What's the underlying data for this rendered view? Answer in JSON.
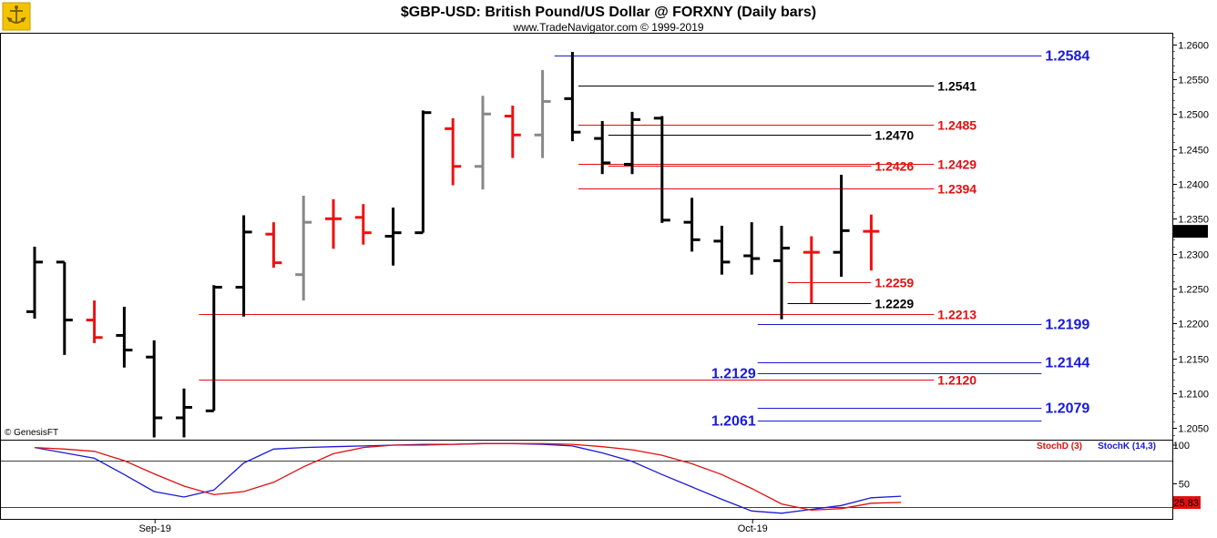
{
  "colors": {
    "up": "#000000",
    "down": "#ee1111",
    "neutral": "#888888",
    "support": "#1a1ad6",
    "resistance": "#e01010",
    "black_level": "#000000",
    "stoch_d": "#e01010",
    "stoch_k": "#1a1ad6",
    "current_price_bg": "#000000",
    "stoch_value_bg": "#e01010"
  },
  "chart_data": [
    {
      "type": "ohlc",
      "title": "$GBP-USD:  British Pound/US Dollar @ FORXNY  (Daily bars)",
      "subtitle": "www.TradeNavigator.com © 1999-2019",
      "watermark": "© GenesisFT",
      "y_axis": {
        "range": [
          1.2035,
          1.2615
        ],
        "ticks": [
          "1.2050",
          "1.2100",
          "1.2150",
          "1.2200",
          "1.2250",
          "1.2300",
          "1.2350",
          "1.2400",
          "1.2450",
          "1.2500",
          "1.2550",
          "1.2600"
        ],
        "current_price": "1.2332",
        "position": "right"
      },
      "x_axis": {
        "labels": [
          {
            "text": "Sep-19",
            "bar": 4
          },
          {
            "text": "Oct-19",
            "bar": 24
          }
        ]
      },
      "bars": [
        {
          "o": 1.2217,
          "h": 1.231,
          "l": 1.2207,
          "c": 1.2288,
          "color": "up"
        },
        {
          "o": 1.2288,
          "h": 1.2288,
          "l": 1.2155,
          "c": 1.2205,
          "color": "up"
        },
        {
          "o": 1.2205,
          "h": 1.2233,
          "l": 1.2172,
          "c": 1.218,
          "color": "down"
        },
        {
          "o": 1.2183,
          "h": 1.2224,
          "l": 1.2137,
          "c": 1.2162,
          "color": "up"
        },
        {
          "o": 1.2152,
          "h": 1.2176,
          "l": 1.2037,
          "c": 1.2065,
          "color": "up"
        },
        {
          "o": 1.2065,
          "h": 1.2107,
          "l": 1.2037,
          "c": 1.208,
          "color": "up"
        },
        {
          "o": 1.2075,
          "h": 1.2255,
          "l": 1.2075,
          "c": 1.2252,
          "color": "up"
        },
        {
          "o": 1.2252,
          "h": 1.2355,
          "l": 1.221,
          "c": 1.2331,
          "color": "up"
        },
        {
          "o": 1.2328,
          "h": 1.2345,
          "l": 1.228,
          "c": 1.2287,
          "color": "down"
        },
        {
          "o": 1.227,
          "h": 1.2383,
          "l": 1.2233,
          "c": 1.2345,
          "color": "neutral"
        },
        {
          "o": 1.235,
          "h": 1.2378,
          "l": 1.2307,
          "c": 1.235,
          "color": "down"
        },
        {
          "o": 1.2352,
          "h": 1.2371,
          "l": 1.2313,
          "c": 1.233,
          "color": "down"
        },
        {
          "o": 1.2325,
          "h": 1.2366,
          "l": 1.2283,
          "c": 1.233,
          "color": "up"
        },
        {
          "o": 1.233,
          "h": 1.2505,
          "l": 1.233,
          "c": 1.2502,
          "color": "up"
        },
        {
          "o": 1.2479,
          "h": 1.2494,
          "l": 1.2398,
          "c": 1.2425,
          "color": "down"
        },
        {
          "o": 1.2425,
          "h": 1.2526,
          "l": 1.2392,
          "c": 1.25,
          "color": "neutral"
        },
        {
          "o": 1.2497,
          "h": 1.2512,
          "l": 1.2437,
          "c": 1.247,
          "color": "down"
        },
        {
          "o": 1.247,
          "h": 1.2563,
          "l": 1.2437,
          "c": 1.2518,
          "color": "neutral"
        },
        {
          "o": 1.2522,
          "h": 1.2589,
          "l": 1.2461,
          "c": 1.2474,
          "color": "up"
        },
        {
          "o": 1.2465,
          "h": 1.249,
          "l": 1.2414,
          "c": 1.243,
          "color": "up"
        },
        {
          "o": 1.2428,
          "h": 1.2503,
          "l": 1.2414,
          "c": 1.2492,
          "color": "up"
        },
        {
          "o": 1.2494,
          "h": 1.2497,
          "l": 1.2344,
          "c": 1.2348,
          "color": "up"
        },
        {
          "o": 1.2345,
          "h": 1.238,
          "l": 1.2303,
          "c": 1.232,
          "color": "up"
        },
        {
          "o": 1.2318,
          "h": 1.234,
          "l": 1.227,
          "c": 1.2288,
          "color": "up"
        },
        {
          "o": 1.2297,
          "h": 1.2345,
          "l": 1.227,
          "c": 1.2293,
          "color": "up"
        },
        {
          "o": 1.229,
          "h": 1.234,
          "l": 1.2206,
          "c": 1.2308,
          "color": "up"
        },
        {
          "o": 1.2302,
          "h": 1.2325,
          "l": 1.2229,
          "c": 1.2302,
          "color": "down"
        },
        {
          "o": 1.2302,
          "h": 1.2413,
          "l": 1.2267,
          "c": 1.2333,
          "color": "up"
        },
        {
          "o": 1.2332,
          "h": 1.2356,
          "l": 1.2276,
          "c": 1.2332,
          "color": "down"
        }
      ],
      "levels": [
        {
          "value": 1.2584,
          "label": "1.2584",
          "color": "support",
          "from_bar": 17.4,
          "to_bar": 33.7,
          "label_side": "right",
          "big": true
        },
        {
          "value": 1.2541,
          "label": "1.2541",
          "color": "black_level",
          "from_bar": 18.2,
          "to_bar": 30.1,
          "label_side": "right",
          "big": false
        },
        {
          "value": 1.2485,
          "label": "1.2485",
          "color": "resistance",
          "from_bar": 18.2,
          "to_bar": 30.1,
          "label_side": "right",
          "big": false
        },
        {
          "value": 1.247,
          "label": "1.2470",
          "color": "black_level",
          "from_bar": 19.2,
          "to_bar": 28.0,
          "label_side": "right",
          "big": false
        },
        {
          "value": 1.2429,
          "label": "1.2429",
          "color": "resistance",
          "from_bar": 18.2,
          "to_bar": 30.1,
          "label_side": "right",
          "big": false
        },
        {
          "value": 1.2426,
          "label": "1.2426",
          "color": "resistance",
          "from_bar": 19.2,
          "to_bar": 28.0,
          "label_side": "right",
          "big": false
        },
        {
          "value": 1.2394,
          "label": "1.2394",
          "color": "resistance",
          "from_bar": 18.2,
          "to_bar": 30.1,
          "label_side": "right",
          "big": false
        },
        {
          "value": 1.2259,
          "label": "1.2259",
          "color": "resistance",
          "from_bar": 25.2,
          "to_bar": 28.0,
          "label_side": "right",
          "big": false
        },
        {
          "value": 1.2229,
          "label": "1.2229",
          "color": "black_level",
          "from_bar": 25.2,
          "to_bar": 28.0,
          "label_side": "right",
          "big": false
        },
        {
          "value": 1.2213,
          "label": "1.2213",
          "color": "resistance",
          "from_bar": 5.5,
          "to_bar": 30.1,
          "label_side": "right",
          "big": false
        },
        {
          "value": 1.2199,
          "label": "1.2199",
          "color": "support",
          "from_bar": 24.2,
          "to_bar": 33.7,
          "label_side": "right",
          "big": true
        },
        {
          "value": 1.2144,
          "label": "1.2144",
          "color": "support",
          "from_bar": 24.2,
          "to_bar": 33.7,
          "label_side": "right",
          "big": true
        },
        {
          "value": 1.2129,
          "label": "1.2129",
          "color": "support",
          "from_bar": 24.2,
          "to_bar": 33.7,
          "label_side": "left",
          "big": true
        },
        {
          "value": 1.212,
          "label": "1.2120",
          "color": "resistance",
          "from_bar": 5.5,
          "to_bar": 30.1,
          "label_side": "right",
          "big": false
        },
        {
          "value": 1.2079,
          "label": "1.2079",
          "color": "support",
          "from_bar": 24.2,
          "to_bar": 33.7,
          "label_side": "right",
          "big": true
        },
        {
          "value": 1.2061,
          "label": "1.2061",
          "color": "support",
          "from_bar": 24.2,
          "to_bar": 33.7,
          "label_side": "left",
          "big": true
        }
      ]
    },
    {
      "type": "line",
      "title": "",
      "legend": [
        {
          "text": "StochD (3)",
          "color": "stoch_d"
        },
        {
          "text": "StochK (14,3)",
          "color": "stoch_k"
        }
      ],
      "y_axis": {
        "range": [
          0,
          100
        ],
        "ticks": [
          "100",
          "50"
        ],
        "reference_lines": [
          80,
          20
        ],
        "current_value": "25.83"
      },
      "series": [
        {
          "name": "StochD (3)",
          "color": "stoch_d",
          "points": [
            [
              0,
              97
            ],
            [
              1,
              95
            ],
            [
              2,
              92
            ],
            [
              3,
              80
            ],
            [
              4,
              63
            ],
            [
              5,
              47
            ],
            [
              6,
              36
            ],
            [
              7,
              40
            ],
            [
              8,
              52
            ],
            [
              9,
              72
            ],
            [
              10,
              89
            ],
            [
              11,
              97
            ],
            [
              12,
              100
            ],
            [
              13,
              100
            ],
            [
              14,
              101
            ],
            [
              15,
              102
            ],
            [
              16,
              102
            ],
            [
              17,
              102
            ],
            [
              18,
              101
            ],
            [
              19,
              98
            ],
            [
              20,
              94
            ],
            [
              21,
              87
            ],
            [
              22,
              76
            ],
            [
              23,
              62
            ],
            [
              24,
              44
            ],
            [
              25,
              24
            ],
            [
              26,
              16
            ],
            [
              27,
              18
            ],
            [
              28,
              25
            ],
            [
              29,
              26
            ]
          ]
        },
        {
          "name": "StochK (14,3)",
          "color": "stoch_k",
          "points": [
            [
              0,
              97
            ],
            [
              1,
              90
            ],
            [
              2,
              83
            ],
            [
              3,
              62
            ],
            [
              4,
              40
            ],
            [
              5,
              33
            ],
            [
              6,
              42
            ],
            [
              7,
              77
            ],
            [
              8,
              95
            ],
            [
              9,
              97
            ],
            [
              10,
              98
            ],
            [
              11,
              99
            ],
            [
              12,
              100
            ],
            [
              13,
              101
            ],
            [
              14,
              101
            ],
            [
              15,
              102
            ],
            [
              16,
              102
            ],
            [
              17,
              101
            ],
            [
              18,
              99
            ],
            [
              19,
              90
            ],
            [
              20,
              79
            ],
            [
              21,
              62
            ],
            [
              22,
              46
            ],
            [
              23,
              30
            ],
            [
              24,
              15
            ],
            [
              25,
              12
            ],
            [
              26,
              17
            ],
            [
              27,
              22
            ],
            [
              28,
              32
            ],
            [
              29,
              34
            ]
          ]
        }
      ]
    }
  ]
}
